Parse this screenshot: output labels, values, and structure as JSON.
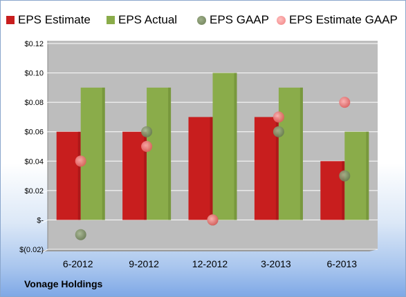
{
  "company": "Vonage Holdings",
  "colors": {
    "estimate": "#c81e1e",
    "actual": "#8aac4a",
    "gaap": "#6b7d55",
    "estimate_gaap": "#f08080",
    "plot_bg": "#bdbdbd"
  },
  "chart_data": {
    "type": "bar",
    "categories": [
      "6-2012",
      "9-2012",
      "12-2012",
      "3-2013",
      "6-2013"
    ],
    "series": [
      {
        "name": "EPS Estimate",
        "kind": "bar",
        "values": [
          0.06,
          0.06,
          0.07,
          0.07,
          0.04
        ]
      },
      {
        "name": "EPS Actual",
        "kind": "bar",
        "values": [
          0.09,
          0.09,
          0.1,
          0.09,
          0.06
        ]
      },
      {
        "name": "EPS GAAP",
        "kind": "marker",
        "values": [
          -0.01,
          0.06,
          0.0,
          0.06,
          0.03
        ]
      },
      {
        "name": "EPS Estimate GAAP",
        "kind": "marker",
        "values": [
          0.04,
          0.05,
          0.0,
          0.07,
          0.08
        ]
      }
    ],
    "ylim": [
      -0.02,
      0.12
    ],
    "yticks": [
      -0.02,
      0.0,
      0.02,
      0.04,
      0.06,
      0.08,
      0.1,
      0.12
    ],
    "ytick_labels": [
      "$(0.02)",
      "$-",
      "$0.02",
      "$0.04",
      "$0.06",
      "$0.08",
      "$0.10",
      "$0.12"
    ],
    "grid": true,
    "legend": "top"
  }
}
